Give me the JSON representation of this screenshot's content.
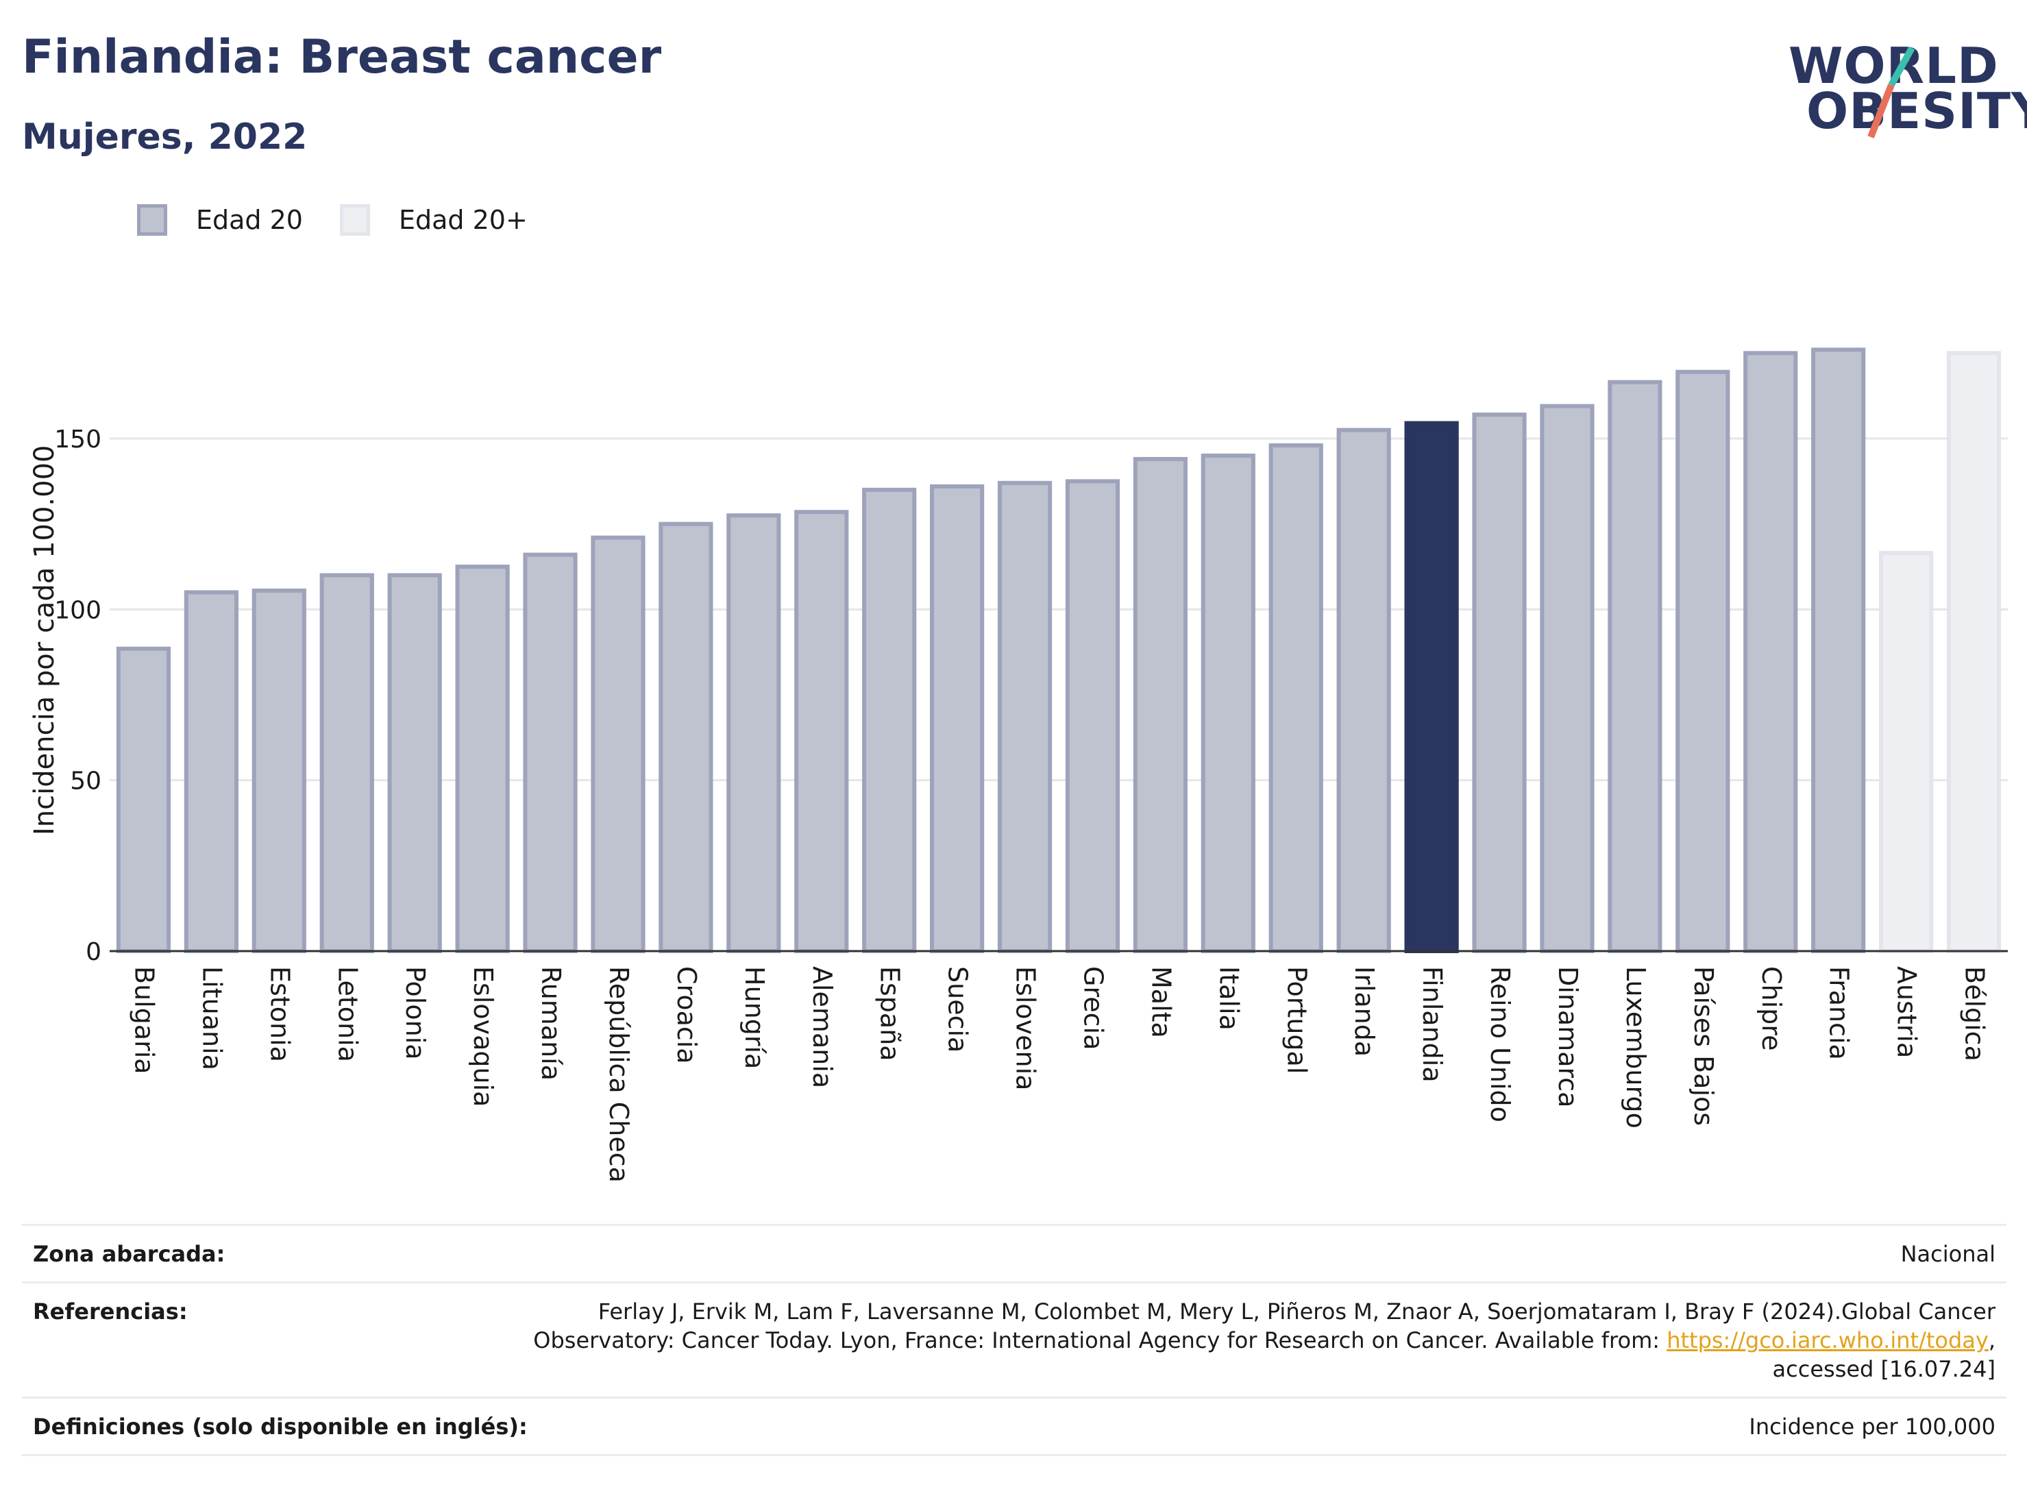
{
  "title": "Finlandia: Breast cancer",
  "subtitle": "Mujeres, 2022",
  "logo": {
    "line1": "WORLD",
    "line2": "OBESITY"
  },
  "legend": [
    {
      "label": "Edad 20",
      "color": "#bfc2cf",
      "border": "#9ea3bb"
    },
    {
      "label": "Edad 20+",
      "color": "#eeeff3",
      "border": "#e4e5ec"
    }
  ],
  "chart_data": {
    "type": "bar",
    "ylabel": "Incidencia por cada 100.000",
    "xlabel": "",
    "ylim": [
      0,
      190
    ],
    "yticks": [
      0,
      50,
      100,
      150
    ],
    "grid": true,
    "categories": [
      "Bulgaria",
      "Lituania",
      "Estonia",
      "Letonia",
      "Polonia",
      "Eslovaquia",
      "Rumanía",
      "República Checa",
      "Croacia",
      "Hungría",
      "Alemania",
      "España",
      "Suecia",
      "Eslovenia",
      "Grecia",
      "Malta",
      "Italia",
      "Portugal",
      "Irlanda",
      "Finlandia",
      "Reino Unido",
      "Dinamarca",
      "Luxemburgo",
      "Países Bajos",
      "Chipre",
      "Francia",
      "Austria",
      "Bélgica"
    ],
    "series": [
      {
        "name": "Edad 20",
        "values": [
          88.5,
          105,
          105.5,
          110,
          110,
          112.5,
          116,
          121,
          125,
          127.5,
          128.5,
          135,
          136,
          137,
          137.5,
          144,
          145,
          148,
          152.5,
          154.5,
          157,
          159.5,
          166.5,
          169.5,
          175,
          176,
          null,
          null
        ]
      },
      {
        "name": "Edad 20+",
        "values": [
          null,
          null,
          null,
          null,
          null,
          null,
          null,
          null,
          null,
          null,
          null,
          null,
          null,
          null,
          null,
          null,
          null,
          null,
          null,
          null,
          null,
          null,
          null,
          null,
          null,
          null,
          116.5,
          175
        ]
      }
    ],
    "highlight": "Finlandia",
    "colors": {
      "edad20_fill": "#bfc2cf",
      "edad20_border": "#9ea3bb",
      "edad20plus_fill": "#eeeff3",
      "edad20plus_border": "#e4e5ec",
      "highlight": "#2a3560"
    }
  },
  "meta": {
    "zona_key": "Zona abarcada:",
    "zona_val": "Nacional",
    "ref_key": "Referencias:",
    "ref_line1": "Ferlay J, Ervik M, Lam F, Laversanne M, Colombet M, Mery L, Piñeros M, Znaor A, Soerjomataram I, Bray F (2024).Global Cancer",
    "ref_line2": "Observatory: Cancer Today. Lyon, France: International Agency for Research on Cancer. Available from: ",
    "ref_link": "https://gco.iarc.who.int/today",
    "ref_line2_end": ",",
    "ref_line3": "accessed [16.07.24]",
    "def_key": "Definiciones (solo disponible en inglés):",
    "def_val": "Incidence per 100,000"
  }
}
